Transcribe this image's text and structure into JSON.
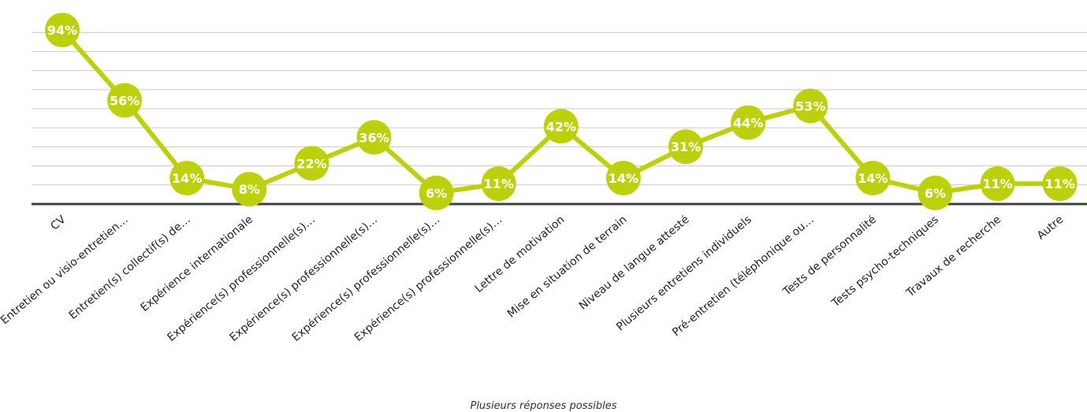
{
  "chart_data": {
    "type": "line",
    "categories": [
      "CV",
      "Entretien ou visio-entretien…",
      "Entretien(s) collectif(s) de…",
      "Expérience internationale",
      "Expérience(s) professionnelle(s)…",
      "Expérience(s) professionnelle(s)…",
      "Expérience(s) professionnelle(s)…",
      "Expérience(s) professionnelle(s)…",
      "Lettre de motivation",
      "Mise en situation de terrain",
      "Niveau de langue attesté",
      "Plusieurs entretiens individuels",
      "Pré-entretien (téléphonique ou…",
      "Tests de personnalité",
      "Tests psycho-techniques",
      "Travaux de recherche",
      "Autre"
    ],
    "values": [
      94,
      56,
      14,
      8,
      22,
      36,
      6,
      11,
      42,
      14,
      31,
      44,
      53,
      14,
      6,
      11,
      11
    ],
    "data_labels": [
      "94%",
      "56%",
      "14%",
      "8%",
      "22%",
      "36%",
      "6%",
      "11%",
      "42%",
      "14%",
      "31%",
      "44%",
      "53%",
      "14%",
      "6%",
      "11%",
      "11%"
    ],
    "ylim": [
      0,
      100
    ],
    "grid": true,
    "legend": "none",
    "note": "Plusieurs réponses possibles",
    "colors": {
      "line": "#bcd10c",
      "label_text": "#ffffff",
      "grid": "#c8c8c8",
      "axis": "#404040",
      "category_text": "#222222"
    }
  }
}
